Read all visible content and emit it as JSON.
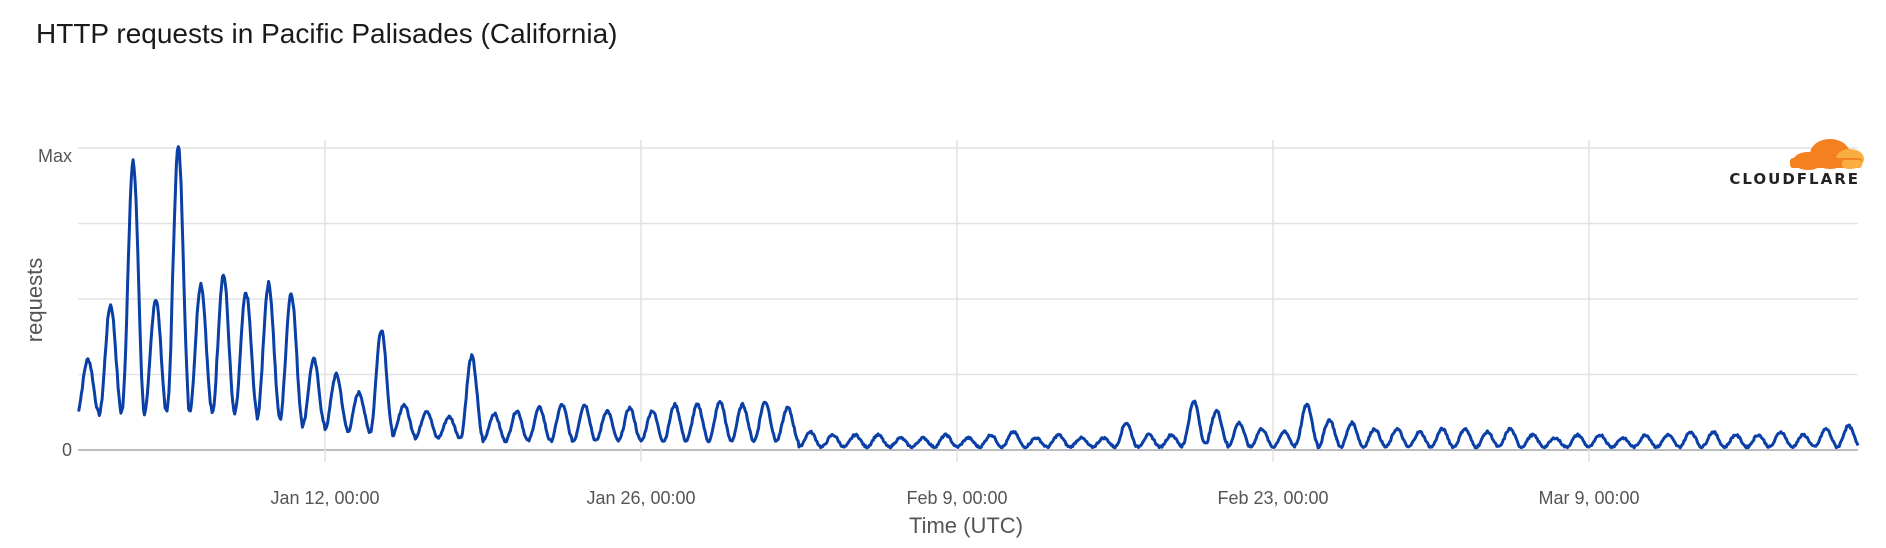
{
  "title": "HTTP requests in Pacific Palisades (California)",
  "logo": {
    "text": "CLOUDFLARE",
    "colors": [
      "#f48120",
      "#faae40"
    ]
  },
  "chart_data": {
    "type": "line",
    "title": "HTTP requests in Pacific Palisades (California)",
    "xlabel": "Time (UTC)",
    "ylabel": "requests",
    "y_tick_labels": [
      "0",
      "Max"
    ],
    "x_tick_labels": [
      "Jan 12, 00:00",
      "Jan 26, 00:00",
      "Feb 9, 00:00",
      "Feb 23, 00:00",
      "Mar 9, 00:00"
    ],
    "x_range": [
      "Jan 1",
      "Mar 20"
    ],
    "ylim": [
      0,
      1
    ],
    "grid": true,
    "line_color": "#0a3fa6",
    "series": [
      {
        "x": [
          "Jan 1",
          "Jan 2",
          "Jan 3",
          "Jan 4",
          "Jan 5",
          "Jan 6",
          "Jan 7",
          "Jan 8",
          "Jan 9",
          "Jan 10",
          "Jan 11",
          "Jan 12",
          "Jan 13",
          "Jan 14",
          "Jan 15",
          "Jan 16",
          "Jan 17",
          "Jan 18",
          "Jan 19",
          "Jan 20",
          "Jan 21",
          "Jan 22",
          "Jan 23",
          "Jan 24",
          "Jan 25",
          "Jan 26",
          "Jan 27",
          "Jan 28",
          "Jan 29",
          "Jan 30",
          "Jan 31",
          "Feb 1",
          "Feb 2",
          "Feb 3",
          "Feb 4",
          "Feb 5",
          "Feb 6",
          "Feb 7",
          "Feb 8",
          "Feb 9",
          "Feb 10",
          "Feb 11",
          "Feb 12",
          "Feb 13",
          "Feb 14",
          "Feb 15",
          "Feb 16",
          "Feb 17",
          "Feb 18",
          "Feb 19",
          "Feb 20",
          "Feb 21",
          "Feb 22",
          "Feb 23",
          "Feb 24",
          "Feb 25",
          "Feb 26",
          "Feb 27",
          "Feb 28",
          "Mar 1",
          "Mar 2",
          "Mar 3",
          "Mar 4",
          "Mar 5",
          "Mar 6",
          "Mar 7",
          "Mar 8",
          "Mar 9",
          "Mar 10",
          "Mar 11",
          "Mar 12",
          "Mar 13",
          "Mar 14",
          "Mar 15",
          "Mar 16",
          "Mar 17",
          "Mar 18",
          "Mar 19",
          "Mar 20"
        ],
        "peak": [
          0.3,
          0.48,
          0.95,
          0.5,
          1.0,
          0.55,
          0.58,
          0.52,
          0.55,
          0.52,
          0.3,
          0.25,
          0.19,
          0.4,
          0.15,
          0.13,
          0.11,
          0.31,
          0.12,
          0.13,
          0.14,
          0.15,
          0.15,
          0.13,
          0.14,
          0.13,
          0.15,
          0.15,
          0.16,
          0.15,
          0.16,
          0.14,
          0.06,
          0.05,
          0.05,
          0.05,
          0.04,
          0.04,
          0.05,
          0.04,
          0.05,
          0.06,
          0.04,
          0.05,
          0.04,
          0.04,
          0.09,
          0.05,
          0.05,
          0.16,
          0.13,
          0.09,
          0.07,
          0.06,
          0.15,
          0.1,
          0.09,
          0.07,
          0.07,
          0.06,
          0.07,
          0.07,
          0.06,
          0.07,
          0.05,
          0.04,
          0.05,
          0.05,
          0.04,
          0.05,
          0.05,
          0.06,
          0.06,
          0.05,
          0.05,
          0.06,
          0.05,
          0.07,
          0.08
        ],
        "trough": [
          0.12,
          0.12,
          0.13,
          0.12,
          0.13,
          0.13,
          0.12,
          0.12,
          0.11,
          0.1,
          0.08,
          0.07,
          0.06,
          0.06,
          0.05,
          0.04,
          0.04,
          0.04,
          0.03,
          0.03,
          0.03,
          0.03,
          0.03,
          0.03,
          0.03,
          0.03,
          0.03,
          0.03,
          0.03,
          0.03,
          0.03,
          0.03,
          0.01,
          0.01,
          0.01,
          0.01,
          0.01,
          0.01,
          0.01,
          0.01,
          0.01,
          0.01,
          0.01,
          0.01,
          0.01,
          0.01,
          0.01,
          0.01,
          0.01,
          0.02,
          0.02,
          0.01,
          0.01,
          0.01,
          0.02,
          0.01,
          0.01,
          0.01,
          0.01,
          0.01,
          0.01,
          0.01,
          0.01,
          0.01,
          0.01,
          0.01,
          0.01,
          0.01,
          0.01,
          0.01,
          0.01,
          0.01,
          0.01,
          0.01,
          0.01,
          0.01,
          0.01,
          0.01,
          0.01
        ]
      }
    ]
  }
}
